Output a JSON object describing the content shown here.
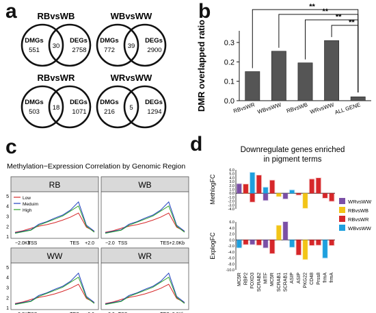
{
  "panels": {
    "a": {
      "letter": "a",
      "venns": [
        {
          "title": "RBvsWB",
          "left_label": "DMGs",
          "right_label": "DEGs",
          "left_only": "551",
          "overlap": "30",
          "right_only": "2758"
        },
        {
          "title": "WBvsWW",
          "left_label": "DMGs",
          "right_label": "DEGs",
          "left_only": "772",
          "overlap": "39",
          "right_only": "2900"
        },
        {
          "title": "RBvsWR",
          "left_label": "DMGs",
          "right_label": "DEGs",
          "left_only": "503",
          "overlap": "18",
          "right_only": "1071"
        },
        {
          "title": "WRvsWW",
          "left_label": "DMGs",
          "right_label": "DEGs",
          "left_only": "216",
          "overlap": "5",
          "right_only": "1294"
        }
      ]
    },
    "b": {
      "letter": "b",
      "significance": [
        "**",
        "**",
        "**",
        "**"
      ]
    },
    "c": {
      "letter": "c",
      "title": "Methylation−Expression Correlation by Genomic Region",
      "legend": [
        "Low",
        "Meduim",
        "High"
      ],
      "legend_colors": [
        "#d62728",
        "#1f3fbf",
        "#2ca02c"
      ],
      "facets": [
        "RB",
        "WB",
        "WW",
        "WR"
      ],
      "y_ticks": [
        "1",
        "2",
        "3",
        "4",
        "5"
      ],
      "x_ticks_left": [
        "−2.0Kb",
        "TSS",
        "TES",
        "+2.0"
      ],
      "x_ticks_right": [
        "−2.0",
        "TSS",
        "TES",
        "+2.0Kb"
      ]
    },
    "d": {
      "letter": "d",
      "title_line1": "Downregulate genes enriched",
      "title_line2": "in pigment terms",
      "ylabel_top": "MethlogFC",
      "ylabel_bottom": "ExplogFC",
      "y_ticks_top": [
        "6.0",
        "5.0",
        "4.0",
        "3.0",
        "2.0",
        "1.0",
        "0.0",
        "-1.0",
        "-2.0",
        "-3.0",
        "-4.0"
      ],
      "y_ticks_bottom": [
        "6.0",
        "4.0",
        "2.0",
        "0.0",
        "-2.0",
        "-4.0",
        "-6.0",
        "-8.0",
        "-10.0"
      ],
      "genes": [
        "MC5R",
        "RBP2",
        "FOXD3",
        "SCRAB2",
        "MITF",
        "MC5R",
        "SCRAB1",
        "SCRAB1",
        "ASIP",
        "ASIP",
        "PKG22",
        "CD48",
        "Prss8",
        "frmA",
        "frmA"
      ],
      "legend": [
        "WRvsWW",
        "RBvsWB",
        "RBvsWR",
        "WBvsWW"
      ],
      "legend_colors": [
        "#7b4fa6",
        "#f2c417",
        "#d6272a",
        "#1ea0de"
      ]
    }
  },
  "chart_data": [
    {
      "type": "bar",
      "panel": "b",
      "ylabel": "DMR overlapped ratio",
      "categories": [
        "RBvsWR",
        "WBvsWW",
        "RBvsWB",
        "WRvsWW",
        "ALL GENE"
      ],
      "values": [
        0.15,
        0.255,
        0.195,
        0.31,
        0.02
      ],
      "ylim": [
        0,
        0.36
      ],
      "y_ticks": [
        0.0,
        0.1,
        0.2,
        0.3
      ],
      "bar_color": "#555555"
    },
    {
      "type": "bar",
      "panel": "d",
      "subplot": "MethlogFC",
      "ylim": [
        -4,
        6
      ],
      "series": [
        {
          "name": "WRvsWW",
          "values": [
            2.4,
            0,
            0,
            0,
            -1.8,
            0,
            0,
            -1.4,
            0,
            0,
            0,
            0,
            0,
            0,
            0
          ]
        },
        {
          "name": "RBvsWB",
          "values": [
            0,
            2.2,
            0,
            0,
            0,
            0,
            -0.8,
            0,
            0,
            0,
            -3.8,
            0,
            0,
            0,
            0
          ]
        },
        {
          "name": "RBvsWR",
          "values": [
            0,
            2.3,
            -2.2,
            4.6,
            0,
            3.3,
            0,
            0,
            0,
            -0.4,
            0,
            3.6,
            3.9,
            -1.2,
            -2.0
          ]
        },
        {
          "name": "WBvsWW",
          "values": [
            0,
            0,
            5.3,
            0,
            1.5,
            0,
            0,
            0,
            0.8,
            0,
            0,
            0,
            0,
            0,
            0
          ]
        }
      ]
    },
    {
      "type": "bar",
      "panel": "d",
      "subplot": "ExplogFC",
      "ylim": [
        -10,
        6
      ],
      "series": [
        {
          "name": "WRvsWW",
          "values": [
            0,
            0,
            -1.5,
            0,
            -2.6,
            0,
            0,
            6.0,
            0,
            0,
            0,
            0,
            0,
            0,
            0
          ]
        },
        {
          "name": "RBvsWB",
          "values": [
            0,
            0,
            0,
            0,
            0,
            0,
            4.8,
            0,
            0,
            0,
            -6.5,
            0,
            0,
            0,
            0
          ]
        },
        {
          "name": "RBvsWR",
          "values": [
            -2.2,
            -1.5,
            0,
            -1.7,
            0,
            -4.5,
            0,
            0,
            0,
            -5.0,
            0,
            -1.8,
            -1.7,
            0,
            -1.8
          ]
        },
        {
          "name": "WBvsWW",
          "values": [
            -2.6,
            0,
            0,
            0,
            0,
            0,
            0,
            0,
            -2.4,
            0,
            0,
            0,
            0,
            -6.0,
            0
          ]
        }
      ]
    },
    {
      "type": "line",
      "panel": "c",
      "note_ticks": "x axis: -2.0Kb, TSS, TES, +2.0Kb; y axis 1-5",
      "x": [
        0,
        10,
        20,
        30,
        40,
        50,
        60,
        70,
        80,
        90,
        100
      ],
      "series": [
        {
          "name": "Low",
          "values": [
            1.4,
            1.55,
            1.8,
            2.0,
            2.15,
            2.35,
            2.6,
            2.9,
            3.3,
            1.9,
            1.5
          ]
        },
        {
          "name": "Meduim",
          "values": [
            1.35,
            1.5,
            1.65,
            2.2,
            2.45,
            2.8,
            3.1,
            3.6,
            4.4,
            2.1,
            1.5
          ]
        },
        {
          "name": "High",
          "values": [
            1.3,
            1.45,
            1.6,
            2.1,
            2.4,
            2.7,
            3.0,
            3.5,
            4.0,
            2.0,
            1.4
          ]
        }
      ]
    }
  ]
}
